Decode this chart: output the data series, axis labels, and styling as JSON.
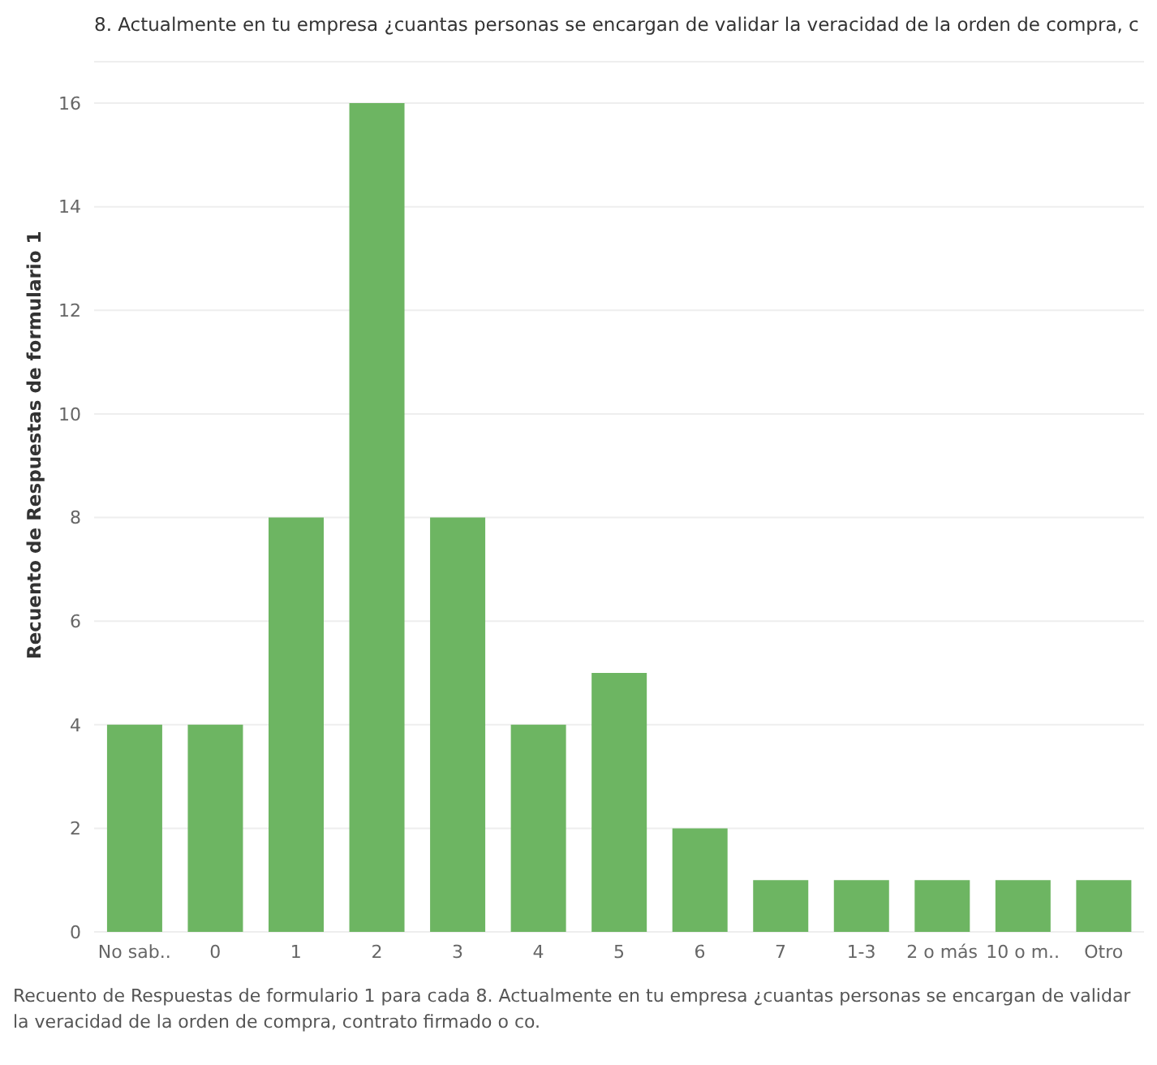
{
  "chart_data": {
    "type": "bar",
    "title": "8. Actualmente en tu empresa ¿cuantas personas se encargan de validar la veracidad de la orden de compra, c",
    "ylabel": "Recuento de Respuestas de formulario 1",
    "categories": [
      "No sab..",
      "0",
      "1",
      "2",
      "3",
      "4",
      "5",
      "6",
      "7",
      "1-3",
      "2 o más",
      "10 o m..",
      "Otro"
    ],
    "values": [
      4,
      4,
      8,
      16,
      8,
      4,
      5,
      2,
      1,
      1,
      1,
      1,
      1
    ],
    "color": "#6db562",
    "ylim": [
      0,
      16.8
    ],
    "yticks": [
      0,
      2,
      4,
      6,
      8,
      10,
      12,
      14,
      16
    ],
    "grid": "y",
    "annotations": [
      "Recuento de Respuestas de formulario 1 para cada 8. Actualmente en tu empresa ¿cuantas personas se encargan de validar la veracidad de la orden de compra, contrato firmado o co."
    ]
  }
}
